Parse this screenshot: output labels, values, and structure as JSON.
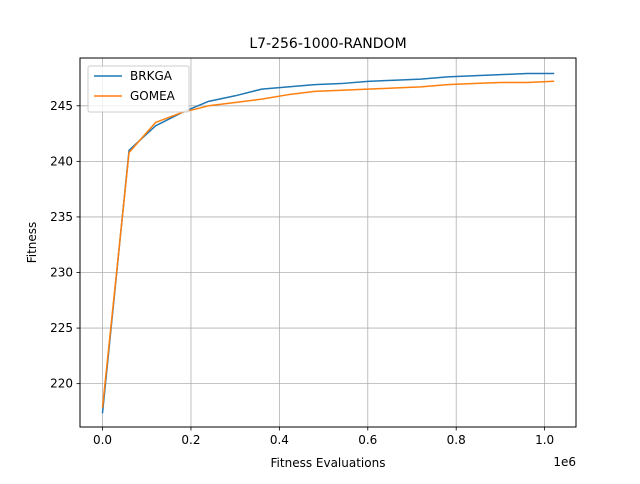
{
  "chart_data": {
    "type": "line",
    "title": "L7-256-1000-RANDOM",
    "xlabel": "Fitness Evaluations",
    "ylabel": "Fitness",
    "x_offset_label": "1e6",
    "xlim": [
      -0.051,
      1.071
    ],
    "ylim": [
      216.1,
      249.3
    ],
    "x_ticks": [
      0.0,
      0.2,
      0.4,
      0.6,
      0.8,
      1.0
    ],
    "x_tick_labels": [
      "0.0",
      "0.2",
      "0.4",
      "0.6",
      "0.8",
      "1.0"
    ],
    "y_ticks": [
      220,
      225,
      230,
      235,
      240,
      245
    ],
    "y_tick_labels": [
      "220",
      "225",
      "230",
      "235",
      "240",
      "245"
    ],
    "grid": true,
    "legend_position": "top-left",
    "series": [
      {
        "name": "BRKGA",
        "color": "#1f77b4",
        "x": [
          0.0,
          0.06,
          0.12,
          0.18,
          0.24,
          0.3,
          0.36,
          0.42,
          0.48,
          0.54,
          0.6,
          0.66,
          0.72,
          0.78,
          0.84,
          0.9,
          0.96,
          1.02
        ],
        "y": [
          217.4,
          241.0,
          243.2,
          244.4,
          245.4,
          245.9,
          246.5,
          246.7,
          246.9,
          247.0,
          247.2,
          247.3,
          247.4,
          247.6,
          247.7,
          247.8,
          247.9,
          247.9
        ]
      },
      {
        "name": "GOMEA",
        "color": "#ff7f0e",
        "x": [
          0.0,
          0.06,
          0.12,
          0.18,
          0.24,
          0.3,
          0.36,
          0.42,
          0.48,
          0.54,
          0.6,
          0.66,
          0.72,
          0.78,
          0.84,
          0.9,
          0.96,
          1.02
        ],
        "y": [
          217.9,
          240.8,
          243.5,
          244.4,
          245.0,
          245.3,
          245.6,
          246.0,
          246.3,
          246.4,
          246.5,
          246.6,
          246.7,
          246.9,
          247.0,
          247.1,
          247.1,
          247.2
        ]
      }
    ]
  }
}
